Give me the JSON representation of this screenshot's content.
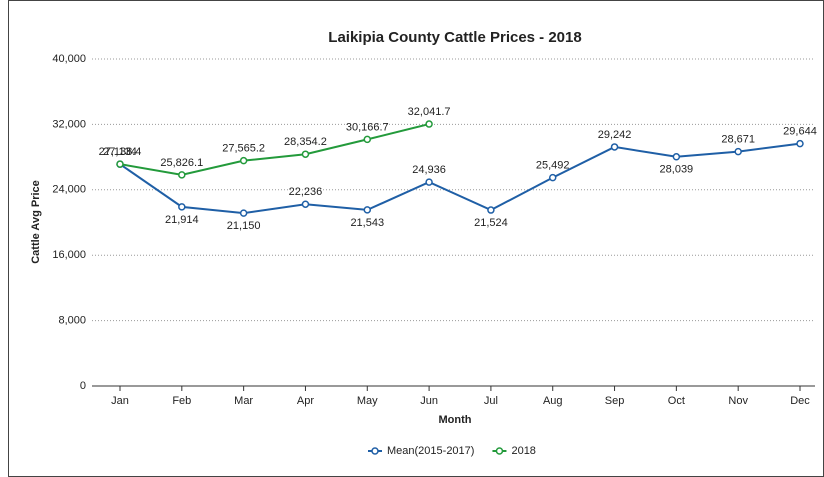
{
  "chart_data": {
    "type": "line",
    "title": "Laikipia County Cattle Prices - 2018",
    "x_label": "Month",
    "y_label": "Cattle Avg Price",
    "categories": [
      "Jan",
      "Feb",
      "Mar",
      "Apr",
      "May",
      "Jun",
      "Jul",
      "Aug",
      "Sep",
      "Oct",
      "Nov",
      "Dec"
    ],
    "series": [
      {
        "name": "Mean(2015-2017)",
        "color": "#1f5fa6",
        "values": [
          27134,
          21914,
          21150,
          22236,
          21543,
          24936,
          21524,
          25492,
          29242,
          28039,
          28671,
          29644
        ],
        "value_labels": [
          "27,134",
          "21,914",
          "21,150",
          "22,236",
          "21,543",
          "24,936",
          "21,524",
          "25,492",
          "29,242",
          "28,039",
          "28,671",
          "29,644"
        ]
      },
      {
        "name": "2018",
        "color": "#239a3b",
        "values": [
          27138.4,
          25826.1,
          27565.2,
          28354.2,
          30166.7,
          32041.7,
          null,
          null,
          null,
          null,
          null,
          null
        ],
        "value_labels": [
          "27,138.4",
          "25,826.1",
          "27,565.2",
          "28,354.2",
          "30,166.7",
          "32,041.7",
          null,
          null,
          null,
          null,
          null,
          null
        ]
      }
    ],
    "ylim": [
      0,
      40000
    ],
    "yticks": [
      {
        "value": 0,
        "label": "0"
      },
      {
        "value": 8000,
        "label": "8,000"
      },
      {
        "value": 16000,
        "label": "16,000"
      },
      {
        "value": 24000,
        "label": "24,000"
      },
      {
        "value": 32000,
        "label": "32,000"
      },
      {
        "value": 40000,
        "label": "40,000"
      }
    ],
    "grid": true,
    "legend": "bottom"
  }
}
